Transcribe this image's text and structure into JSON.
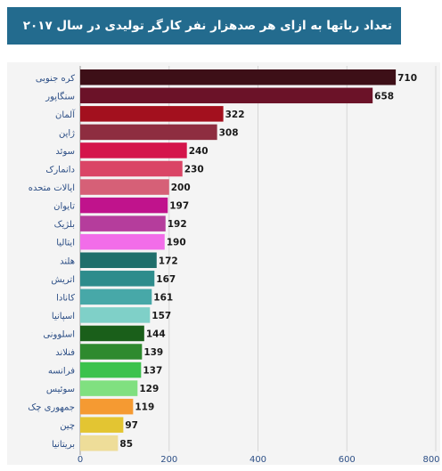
{
  "header": {
    "title": "تعداد رباتها به ازای هر صدهزار نفر کارگر تولیدی در سال ۲۰۱۷",
    "background": "#236b8e"
  },
  "chart_data": {
    "type": "bar",
    "orientation": "horizontal",
    "title": "تعداد رباتها به ازای هر صدهزار نفر کارگر تولیدی در سال ۲۰۱۷",
    "xlabel": "",
    "ylabel": "",
    "xlim": [
      0,
      800
    ],
    "x_ticks": [
      "0",
      "200",
      "400",
      "600",
      "800"
    ],
    "grid": true,
    "categories": [
      "کره جنوبی",
      "سنگاپور",
      "آلمان",
      "ژاپن",
      "سوئد",
      "دانمارک",
      "ایالات متحده",
      "تایوان",
      "بلژیک",
      "ایتالیا",
      "هلند",
      "اتریش",
      "کانادا",
      "اسپانیا",
      "اسلوونی",
      "فنلاند",
      "فرانسه",
      "سوئیس",
      "جمهوری چک",
      "چین",
      "بریتانیا"
    ],
    "values": [
      710,
      658,
      322,
      308,
      240,
      230,
      200,
      197,
      192,
      190,
      172,
      167,
      161,
      157,
      144,
      139,
      137,
      129,
      119,
      97,
      85
    ],
    "colors": [
      "#3d0f17",
      "#6b1228",
      "#a3101e",
      "#8e2d40",
      "#d4154b",
      "#da4566",
      "#d66077",
      "#c0138c",
      "#b53d9c",
      "#f26de9",
      "#1f6f6b",
      "#2e8c8c",
      "#47a8a8",
      "#7fd0c8",
      "#1a5f1a",
      "#2e8a2e",
      "#3cc24d",
      "#80e080",
      "#f59a32",
      "#e3c532",
      "#eedd99"
    ]
  }
}
